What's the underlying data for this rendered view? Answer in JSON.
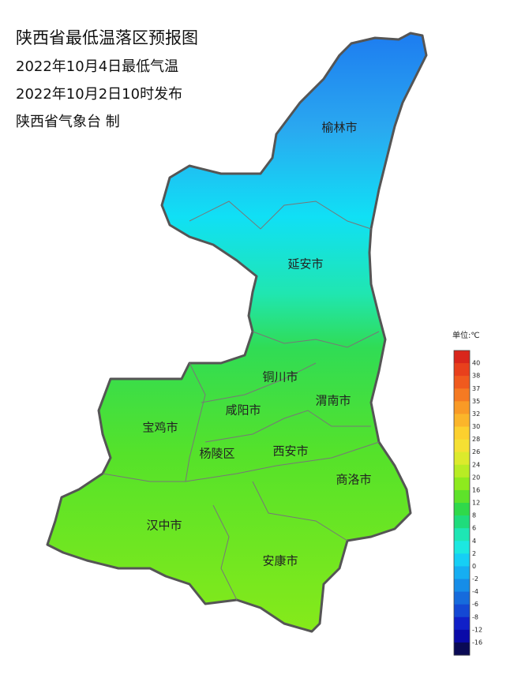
{
  "header": {
    "title": "陕西省最低温落区预报图",
    "date": "2022年10月4日最低气温",
    "issued": "2022年10月2日10时发布",
    "producer": "陕西省气象台 制"
  },
  "cities": [
    "榆林市",
    "延安市",
    "铜川市",
    "咸阳市",
    "渭南市",
    "宝鸡市",
    "杨陵区",
    "西安市",
    "商洛市",
    "汉中市",
    "安康市"
  ],
  "legend": {
    "unit": "单位:℃",
    "levels": [
      40,
      38,
      37,
      35,
      32,
      30,
      28,
      26,
      24,
      20,
      16,
      12,
      8,
      6,
      4,
      2,
      0,
      -2,
      -4,
      -6,
      -8,
      -12,
      -16
    ],
    "colors": [
      "#d9261c",
      "#e8401c",
      "#f05a1e",
      "#f57a22",
      "#f99a26",
      "#fbb52a",
      "#fcd02e",
      "#f5e033",
      "#dcea2c",
      "#b8ec24",
      "#8eea1e",
      "#5ee22a",
      "#2fd94a",
      "#1fdc7c",
      "#1ee6b4",
      "#1ce8e0",
      "#16cff5",
      "#16aef2",
      "#168de8",
      "#166bdc",
      "#1448d4",
      "#1020c8",
      "#0a0aa8",
      "#0a0a55"
    ]
  }
}
